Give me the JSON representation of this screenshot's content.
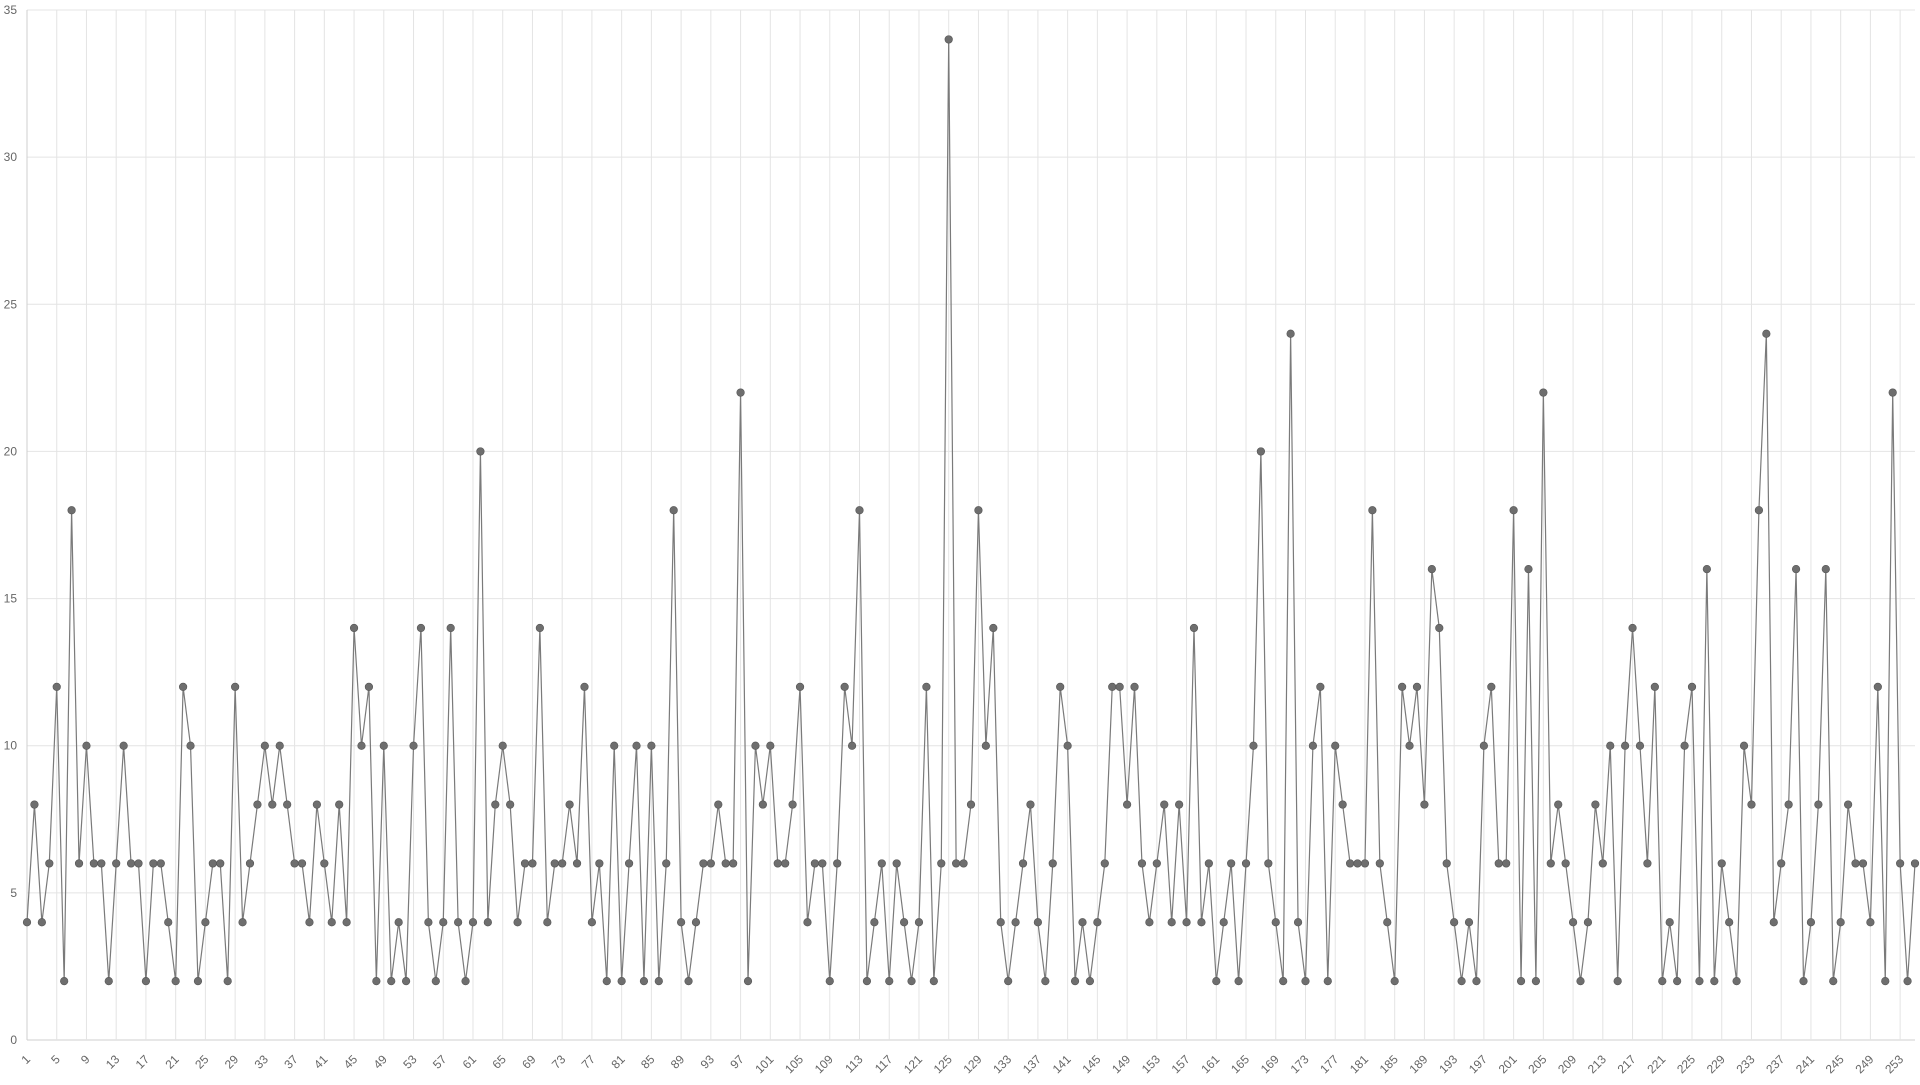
{
  "chart_data": {
    "type": "line",
    "title": "",
    "xlabel": "",
    "ylabel": "",
    "x_start": 1,
    "x_tick_step": 4,
    "ylim": [
      0,
      35
    ],
    "y_ticks": [
      0,
      5,
      10,
      15,
      20,
      25,
      30,
      35
    ],
    "grid": true,
    "series": [
      {
        "values": [
          4,
          8,
          4,
          6,
          12,
          2,
          18,
          6,
          10,
          6,
          6,
          2,
          6,
          10,
          6,
          6,
          2,
          6,
          6,
          4,
          2,
          12,
          10,
          2,
          4,
          6,
          6,
          2,
          12,
          4,
          6,
          8,
          10,
          8,
          10,
          8,
          6,
          6,
          4,
          8,
          6,
          4,
          8,
          4,
          14,
          10,
          12,
          2,
          10,
          2,
          4,
          2,
          10,
          14,
          4,
          2,
          4,
          14,
          4,
          2,
          4,
          20,
          4,
          8,
          10,
          8,
          4,
          6,
          6,
          14,
          4,
          6,
          6,
          8,
          6,
          12,
          4,
          6,
          2,
          10,
          2,
          6,
          10,
          2,
          10,
          2,
          6,
          18,
          4,
          2,
          4,
          6,
          6,
          8,
          6,
          6,
          22,
          2,
          10,
          8,
          10,
          6,
          6,
          8,
          12,
          4,
          6,
          6,
          2,
          6,
          12,
          10,
          18,
          2,
          4,
          6,
          2,
          6,
          4,
          2,
          4,
          12,
          2,
          6,
          34,
          6,
          6,
          8,
          18,
          10,
          14,
          4,
          2,
          4,
          6,
          8,
          4,
          2,
          6,
          12,
          10,
          2,
          4,
          2,
          4,
          6,
          12,
          12,
          8,
          12,
          6,
          4,
          6,
          8,
          4,
          8,
          4,
          14,
          4,
          6,
          2,
          4,
          6,
          2,
          6,
          10,
          20,
          6,
          4,
          2,
          24,
          4,
          2,
          10,
          12,
          2,
          10,
          8,
          6,
          6,
          6,
          18,
          6,
          4,
          2,
          12,
          10,
          12,
          8,
          16,
          14,
          6,
          4,
          2,
          4,
          2,
          10,
          12,
          6,
          6,
          18,
          2,
          16,
          2,
          22,
          6,
          8,
          6,
          4,
          2,
          4,
          8,
          6,
          10,
          2,
          10,
          14,
          10,
          6,
          12,
          2,
          4,
          2,
          10,
          12,
          2,
          16,
          2,
          6,
          4,
          2,
          10,
          8,
          18,
          24,
          4,
          6,
          8,
          16,
          2,
          4,
          8,
          16,
          2,
          4,
          8,
          6,
          6,
          4,
          12,
          2,
          22,
          6,
          2,
          6
        ]
      }
    ],
    "colors": {
      "line": "#7a7a7a",
      "marker": "#6e6e6e",
      "grid": "#e4e4e4",
      "axis": "#cfcfcf",
      "tick_text": "#666666"
    }
  }
}
